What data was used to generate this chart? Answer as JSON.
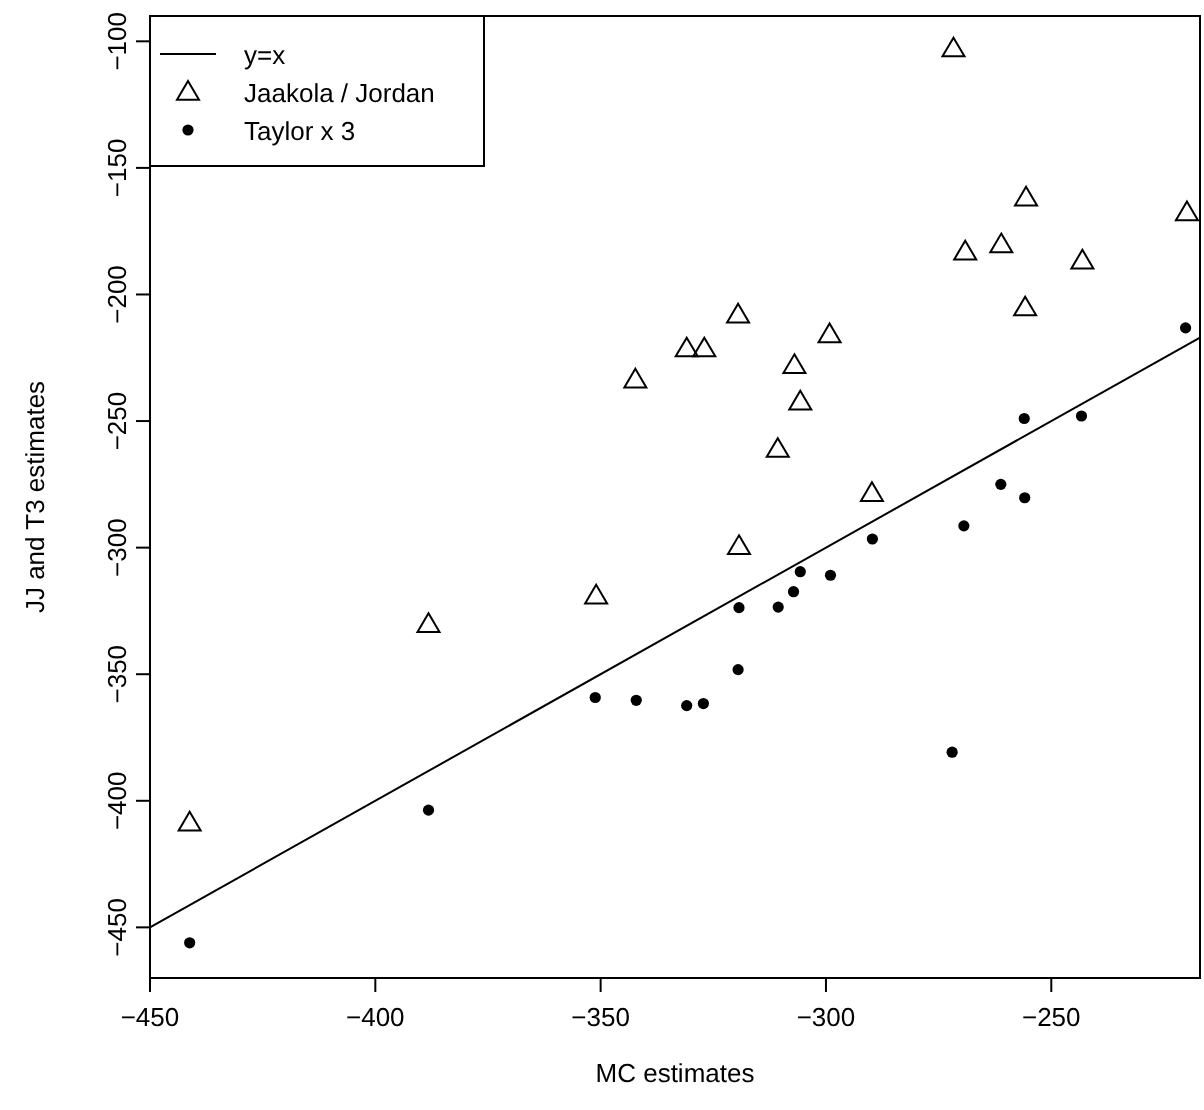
{
  "chart_data": {
    "type": "scatter",
    "xlabel": "MC estimates",
    "ylabel": "JJ and T3 estimates",
    "xlim": [
      -450,
      -217
    ],
    "ylim": [
      -470,
      -90
    ],
    "xticks": [
      -450,
      -400,
      -350,
      -300,
      -250
    ],
    "yticks": [
      -450,
      -400,
      -350,
      -300,
      -250,
      -200,
      -150,
      -100
    ],
    "grid": false,
    "legend": "top left",
    "series": [
      {
        "name": "y=x",
        "type": "line",
        "color": "#000000",
        "marker": "none",
        "line_style": "solid",
        "x": [
          -450,
          -217
        ],
        "values": [
          -450,
          -217
        ]
      },
      {
        "name": "Jaakola / Jordan",
        "color": "#000000",
        "marker": "triangle",
        "x": [
          -441.2,
          -388.2,
          -351,
          -342.3,
          -330.9,
          -327,
          -319.5,
          -319.3,
          -307,
          -305.7,
          -310.7,
          -299.2,
          -289.8,
          -271.7,
          -255.6,
          -219.9,
          -269.1,
          -261.1,
          -243.1,
          -255.8
        ],
        "values": [
          -408.7,
          -330.3,
          -319,
          -233.7,
          -221.4,
          -221.4,
          -208,
          -299.5,
          -228,
          -242.4,
          -261.1,
          -215.8,
          -278.5,
          -102.9,
          -161.8,
          -167.6,
          -183.1,
          -180.3,
          -186.7,
          -205.2
        ]
      },
      {
        "name": "Taylor x 3",
        "color": "#000000",
        "marker": "circle",
        "x": [
          -220.2,
          -256,
          -243.3,
          -261.2,
          -255.9,
          -269.4,
          -289.7,
          -299,
          -305.7,
          -307.2,
          -310.6,
          -272,
          -319.3,
          -319.5,
          -327.2,
          -330.9,
          -342.1,
          -351.2,
          -388.2,
          -441.2
        ],
        "values": [
          -213.2,
          -249,
          -248,
          -275,
          -280.3,
          -291.4,
          -296.6,
          -310.9,
          -309.5,
          -317.4,
          -323.5,
          -380.8,
          -323.7,
          -348.2,
          -361.6,
          -362.4,
          -360.3,
          -359.2,
          -403.7,
          -456.1
        ]
      }
    ]
  }
}
